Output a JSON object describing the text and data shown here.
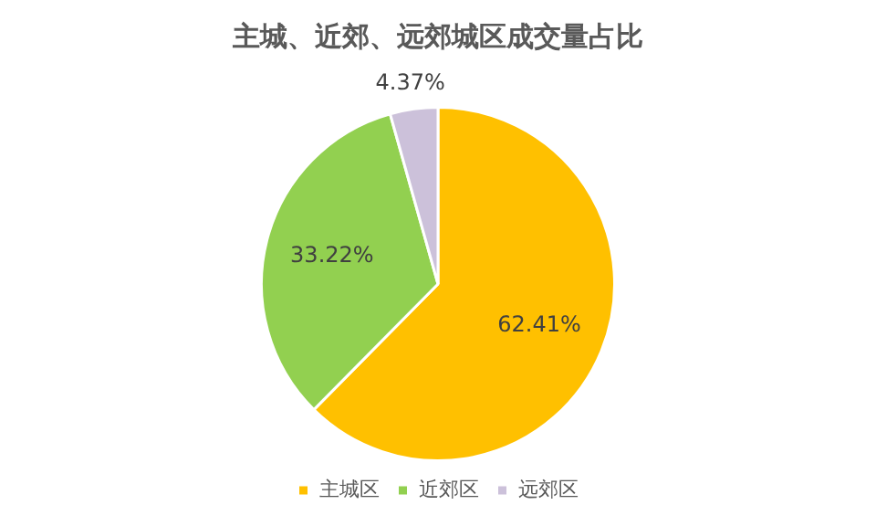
{
  "chart_data": {
    "type": "pie",
    "title": "主城、近郊、远郊城区成交量占比",
    "categories": [
      "主城区",
      "近郊区",
      "远郊区"
    ],
    "values": [
      62.41,
      33.22,
      4.37
    ],
    "colors": [
      "#ffc000",
      "#92d050",
      "#ccc1da"
    ],
    "value_labels": [
      "62.41%",
      "33.22%",
      "4.37%"
    ],
    "legend": "bottom"
  }
}
